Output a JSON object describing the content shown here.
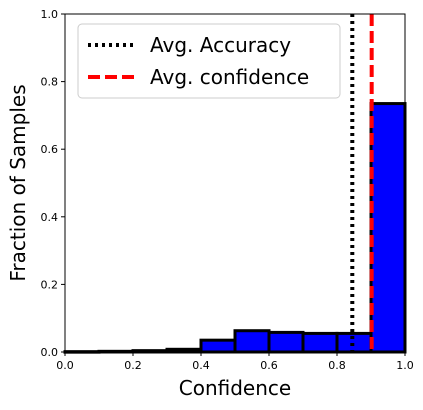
{
  "chart_data": {
    "type": "bar",
    "title": "",
    "xlabel": "Confidence",
    "ylabel": "Fraction of Samples",
    "xlim": [
      0.0,
      1.0
    ],
    "ylim": [
      0.0,
      1.0
    ],
    "xticks": [
      "0.0",
      "0.2",
      "0.4",
      "0.6",
      "0.8",
      "1.0"
    ],
    "yticks": [
      "0.0",
      "0.2",
      "0.4",
      "0.6",
      "0.8",
      "1.0"
    ],
    "bins": [
      {
        "start": 0.0,
        "end": 0.1,
        "value": 0.001
      },
      {
        "start": 0.1,
        "end": 0.2,
        "value": 0.002
      },
      {
        "start": 0.2,
        "end": 0.3,
        "value": 0.004
      },
      {
        "start": 0.3,
        "end": 0.4,
        "value": 0.008
      },
      {
        "start": 0.4,
        "end": 0.5,
        "value": 0.035
      },
      {
        "start": 0.5,
        "end": 0.6,
        "value": 0.063
      },
      {
        "start": 0.6,
        "end": 0.7,
        "value": 0.058
      },
      {
        "start": 0.7,
        "end": 0.8,
        "value": 0.055
      },
      {
        "start": 0.8,
        "end": 0.9,
        "value": 0.055
      },
      {
        "start": 0.9,
        "end": 1.0,
        "value": 0.735
      }
    ],
    "bar_color": "#0000ff",
    "bar_edge_color": "#000000",
    "reference_lines": [
      {
        "name": "Avg. Accuracy",
        "x": 0.845,
        "color": "#000000",
        "style": "dotted"
      },
      {
        "name": "Avg. confidence",
        "x": 0.902,
        "color": "#ff0000",
        "style": "dashed"
      }
    ],
    "legend_position": "top-left",
    "grid": false
  }
}
